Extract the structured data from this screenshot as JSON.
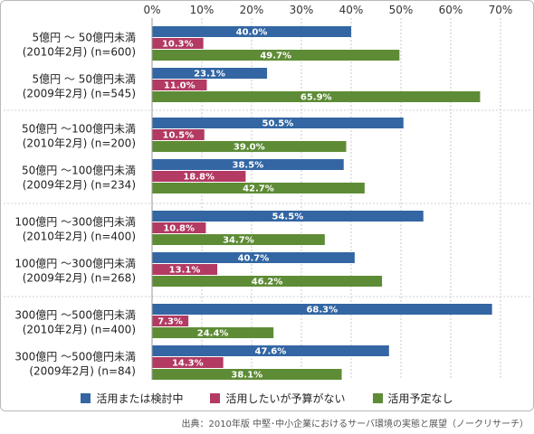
{
  "chart_data": {
    "type": "bar",
    "orientation": "horizontal",
    "xlim": [
      0,
      70
    ],
    "ticks": [
      "0%",
      "10%",
      "20%",
      "30%",
      "40%",
      "50%",
      "60%",
      "70%"
    ],
    "grid": true,
    "legend_position": "bottom",
    "categories": [
      [
        "5億円 ～ 50億円未満",
        "(2010年2月) (n=600)"
      ],
      [
        "5億円 ～ 50億円未満",
        "(2009年2月) (n=545)"
      ],
      [
        "50億円 ～100億円未満",
        "(2010年2月) (n=200)"
      ],
      [
        "50億円 ～100億円未満",
        "(2009年2月) (n=234)"
      ],
      [
        "100億円 ～300億円未満",
        "(2010年2月) (n=400)"
      ],
      [
        "100億円 ～300億円未満",
        "(2009年2月) (n=268)"
      ],
      [
        "300億円 ～500億円未満",
        "(2010年2月) (n=400)"
      ],
      [
        "300億円 ～500億円未満",
        "(2009年2月) (n=84)"
      ]
    ],
    "series": [
      {
        "name": "活用または検討中",
        "color": "#3366a3",
        "values": [
          40.0,
          23.1,
          50.5,
          38.5,
          54.5,
          40.7,
          68.3,
          47.6
        ],
        "labels": [
          "40.0%",
          "23.1%",
          "50.5%",
          "38.5%",
          "54.5%",
          "40.7%",
          "68.3%",
          "47.6%"
        ]
      },
      {
        "name": "活用したいが予算がない",
        "color": "#b33a62",
        "values": [
          10.3,
          11.0,
          10.5,
          18.8,
          10.8,
          13.1,
          7.3,
          14.3
        ],
        "labels": [
          "10.3%",
          "11.0%",
          "10.5%",
          "18.8%",
          "10.8%",
          "13.1%",
          "7.3%",
          "14.3%"
        ]
      },
      {
        "name": "活用予定なし",
        "color": "#5e8c36",
        "values": [
          49.7,
          65.9,
          39.0,
          42.7,
          34.7,
          46.2,
          24.4,
          38.1
        ],
        "labels": [
          "49.7%",
          "65.9%",
          "39.0%",
          "42.7%",
          "34.7%",
          "46.2%",
          "24.4%",
          "38.1%"
        ]
      }
    ]
  },
  "source_note": "出典：2010年版 中堅･中小企業におけるサーバ環境の実態と展望（ノークリサーチ）"
}
